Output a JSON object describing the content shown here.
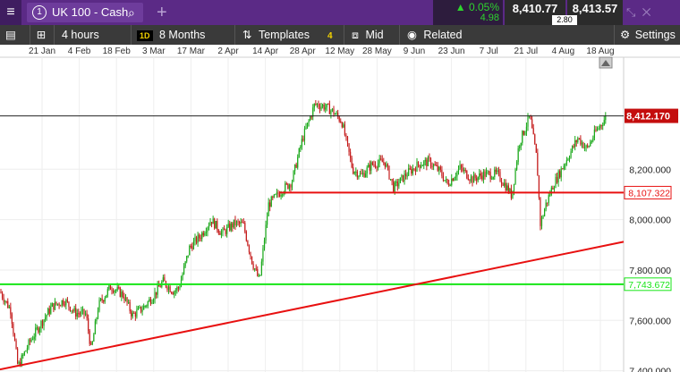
{
  "topbar": {
    "menu_icon": "hamburger-menu-icon",
    "instrument_number": "1",
    "instrument_name": "UK 100 - Cash",
    "search_icon": "search-icon",
    "add_icon": "plus-icon",
    "change_pct": "0.05%",
    "change_abs": "4.98",
    "sell_price": "8,410.77",
    "buy_price": "8,413.57",
    "spread": "2.80",
    "up_color": "#2ed32e"
  },
  "toolbar": {
    "interval": "4 hours",
    "period_badge": "1D",
    "period": "8 Months",
    "templates": "Templates",
    "templates_count": "4",
    "price_type": "Mid",
    "related": "Related",
    "settings": "Settings"
  },
  "chart_data": {
    "type": "candlestick",
    "x_ticks": [
      "21 Jan",
      "4 Feb",
      "18 Feb",
      "3 Mar",
      "17 Mar",
      "2 Apr",
      "14 Apr",
      "28 Apr",
      "12 May",
      "28 May",
      "9 Jun",
      "23 Jun",
      "7 Jul",
      "21 Jul",
      "4 Aug",
      "18 Aug"
    ],
    "y_ticks": [
      "8,200.000",
      "8,000.000",
      "7,800.000",
      "7,600.000",
      "7,400.000"
    ],
    "y_tick_values": [
      8200,
      8000,
      7800,
      7600,
      7400
    ],
    "ylim": [
      7395,
      8645
    ],
    "up_color": "#1aa81a",
    "down_color": "#c41a1a",
    "price_path": [
      [
        0,
        7715
      ],
      [
        12,
        7640
      ],
      [
        20,
        7415
      ],
      [
        34,
        7520
      ],
      [
        48,
        7600
      ],
      [
        58,
        7655
      ],
      [
        72,
        7680
      ],
      [
        84,
        7630
      ],
      [
        96,
        7625
      ],
      [
        102,
        7480
      ],
      [
        110,
        7660
      ],
      [
        124,
        7735
      ],
      [
        138,
        7700
      ],
      [
        148,
        7620
      ],
      [
        160,
        7650
      ],
      [
        172,
        7700
      ],
      [
        182,
        7755
      ],
      [
        194,
        7715
      ],
      [
        200,
        7730
      ],
      [
        212,
        7890
      ],
      [
        224,
        7935
      ],
      [
        236,
        8000
      ],
      [
        248,
        7945
      ],
      [
        262,
        7985
      ],
      [
        272,
        7980
      ],
      [
        282,
        7830
      ],
      [
        290,
        7755
      ],
      [
        300,
        8060
      ],
      [
        316,
        8120
      ],
      [
        326,
        8150
      ],
      [
        338,
        8320
      ],
      [
        352,
        8460
      ],
      [
        362,
        8450
      ],
      [
        372,
        8430
      ],
      [
        382,
        8390
      ],
      [
        394,
        8200
      ],
      [
        404,
        8175
      ],
      [
        416,
        8220
      ],
      [
        430,
        8230
      ],
      [
        440,
        8125
      ],
      [
        454,
        8180
      ],
      [
        468,
        8220
      ],
      [
        480,
        8230
      ],
      [
        492,
        8190
      ],
      [
        500,
        8140
      ],
      [
        514,
        8205
      ],
      [
        528,
        8160
      ],
      [
        540,
        8180
      ],
      [
        556,
        8180
      ],
      [
        566,
        8130
      ],
      [
        572,
        8095
      ],
      [
        580,
        8300
      ],
      [
        592,
        8410
      ],
      [
        600,
        8240
      ],
      [
        604,
        7980
      ],
      [
        610,
        8060
      ],
      [
        618,
        8135
      ],
      [
        632,
        8230
      ],
      [
        646,
        8325
      ],
      [
        656,
        8280
      ],
      [
        666,
        8350
      ],
      [
        678,
        8412
      ]
    ],
    "current_price": "8,412.170",
    "current_value": 8412.17,
    "horizontal_lines": [
      {
        "label": "8,107.322",
        "value": 8107.322,
        "color": "#e81010"
      },
      {
        "label": "7,743.672",
        "value": 7743.672,
        "color": "#17e617"
      }
    ],
    "trendline": {
      "color": "#e81010",
      "from_date": "start",
      "from_value": 7405,
      "to_value": 7912
    }
  }
}
